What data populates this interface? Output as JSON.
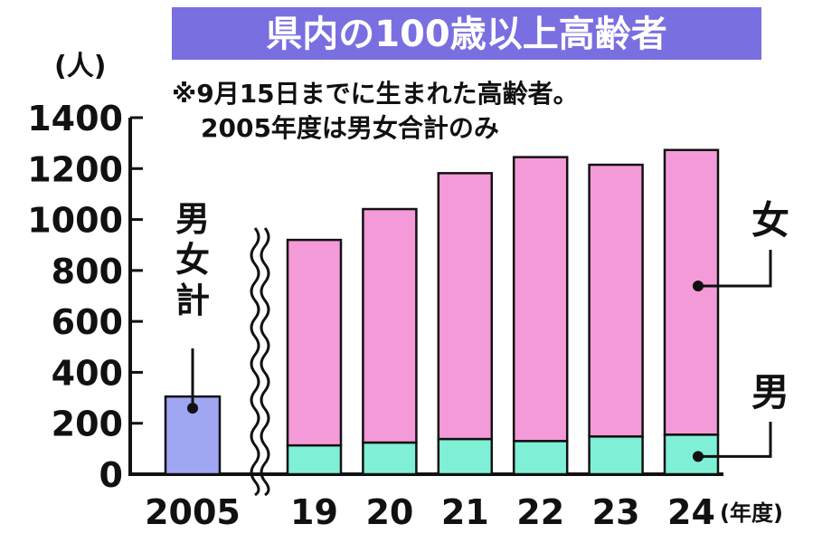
{
  "chart_data": {
    "type": "bar",
    "title": "県内の100歳以上高齢者",
    "note_lines": [
      "※9月15日までに生まれた高齢者。",
      "2005年度は男女合計のみ"
    ],
    "y_unit": "(人)",
    "x_unit": "(年度)",
    "ylim": [
      0,
      1400
    ],
    "y_ticks": [
      0,
      200,
      400,
      600,
      800,
      1000,
      1200,
      1400
    ],
    "grid": false,
    "legend": "right",
    "total_label": "男女計",
    "total_bar": {
      "category": "2005",
      "value": 305
    },
    "categories": [
      "19",
      "20",
      "21",
      "22",
      "23",
      "24"
    ],
    "series": [
      {
        "name": "男",
        "values": [
          113,
          124,
          138,
          130,
          148,
          155
        ]
      },
      {
        "name": "女",
        "values": [
          807,
          917,
          1044,
          1115,
          1067,
          1118
        ]
      }
    ],
    "colors": {
      "title_bg": "#7a6fe0",
      "total": "#a0a6f2",
      "male": "#7ff0d6",
      "female": "#f59ad8",
      "ink": "#111111"
    }
  }
}
